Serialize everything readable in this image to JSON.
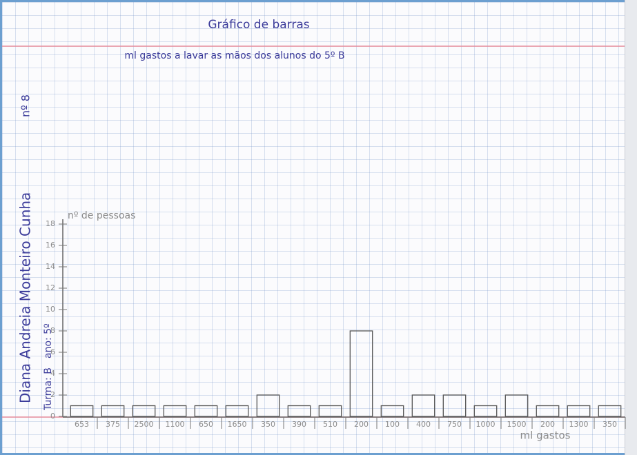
{
  "chart_data": {
    "type": "bar",
    "title": "Gráfico de barras",
    "subtitle": "ml gastos a lavar as mãos dos alunos do 5º B",
    "y_label": "nº de pessoas",
    "x_label": "ml gastos",
    "annotations": [
      "Diana Andreia Monteiro Cunha",
      "nº 8",
      "Turma: B",
      "ano: 5º"
    ],
    "categories": [
      "653",
      "375",
      "2500",
      "1100",
      "650",
      "1650",
      "350",
      "390",
      "510",
      "200",
      "100",
      "400",
      "750",
      "1000",
      "1500",
      "200",
      "1300",
      "350"
    ],
    "values": [
      1,
      1,
      1,
      1,
      1,
      1,
      2,
      1,
      1,
      8,
      1,
      2,
      2,
      1,
      2,
      1,
      1,
      1
    ],
    "color": "#555555",
    "ylim": [
      0,
      18
    ],
    "yticks": [
      0,
      2,
      4,
      6,
      8,
      10,
      12,
      14,
      16,
      18
    ]
  }
}
